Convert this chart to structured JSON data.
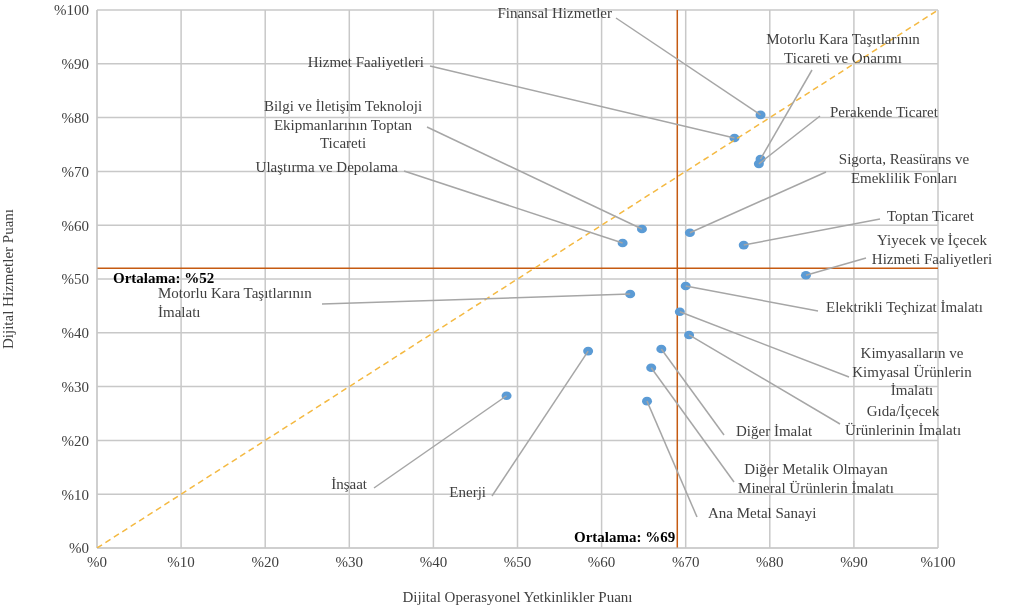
{
  "chart_data": {
    "type": "scatter",
    "xlabel": "Dijital Operasyonel Yetkinlikler Puanı",
    "ylabel": "Dijital Hizmetler Puanı",
    "xlim": [
      0,
      100
    ],
    "ylim": [
      0,
      100
    ],
    "xticks": [
      {
        "value": 0,
        "label": "%0"
      },
      {
        "value": 10,
        "label": "%10"
      },
      {
        "value": 20,
        "label": "%20"
      },
      {
        "value": 30,
        "label": "%30"
      },
      {
        "value": 40,
        "label": "%40"
      },
      {
        "value": 50,
        "label": "%50"
      },
      {
        "value": 60,
        "label": "%60"
      },
      {
        "value": 70,
        "label": "%70"
      },
      {
        "value": 80,
        "label": "%80"
      },
      {
        "value": 90,
        "label": "%90"
      },
      {
        "value": 100,
        "label": "%100"
      }
    ],
    "yticks": [
      {
        "value": 0,
        "label": "%0"
      },
      {
        "value": 10,
        "label": "%10"
      },
      {
        "value": 20,
        "label": "%20"
      },
      {
        "value": 30,
        "label": "%30"
      },
      {
        "value": 40,
        "label": "%40"
      },
      {
        "value": 50,
        "label": "%50"
      },
      {
        "value": 60,
        "label": "%60"
      },
      {
        "value": 70,
        "label": "%70"
      },
      {
        "value": 80,
        "label": "%80"
      },
      {
        "value": 90,
        "label": "%90"
      },
      {
        "value": 100,
        "label": "%100"
      }
    ],
    "grid": true,
    "legend": false,
    "series": [
      {
        "color": "#5b9bd5",
        "marker": "circle",
        "x": [
          78.9,
          75.8,
          78.9,
          78.7,
          64.8,
          62.5,
          70.5,
          76.9,
          84.3,
          63.4,
          70.0,
          69.3,
          70.4,
          67.1,
          65.9,
          65.4,
          58.4,
          48.7
        ],
        "values": [
          80.5,
          76.2,
          72.3,
          71.4,
          59.3,
          56.7,
          58.6,
          56.3,
          50.7,
          47.2,
          48.7,
          43.9,
          39.6,
          37.0,
          33.5,
          27.3,
          36.6,
          28.3
        ]
      },
      {
        "type": "line",
        "color": "#f4b942",
        "marker": "none",
        "line_style": "dashed",
        "x": [
          0,
          100
        ],
        "values": [
          0,
          100
        ]
      }
    ],
    "ref_lines": [
      {
        "axis": "x",
        "value": 69,
        "label": "Ortalama: %69",
        "color": "#c55a11"
      },
      {
        "axis": "y",
        "value": 52,
        "label": "Ortalama: %52",
        "color": "#c55a11"
      }
    ],
    "annotations": [
      {
        "text": "Finansal Hizmetler",
        "x": 78.9,
        "y": 80.5
      },
      {
        "text": "Hizmet Faaliyetleri",
        "x": 75.8,
        "y": 76.2
      },
      {
        "text": "Motorlu Kara Taşıtlarının\nTicareti ve Onarımı",
        "x": 78.9,
        "y": 72.3
      },
      {
        "text": "Perakende Ticaret",
        "x": 78.7,
        "y": 71.4
      },
      {
        "text": "Bilgi ve İletişim Teknoloji\nEkipmanlarının Toptan\nTicareti",
        "x": 64.8,
        "y": 59.3
      },
      {
        "text": "Ulaştırma ve Depolama",
        "x": 62.5,
        "y": 56.7
      },
      {
        "text": "Sigorta, Reasürans ve\nEmeklilik Fonları",
        "x": 70.5,
        "y": 58.6
      },
      {
        "text": "Toptan Ticaret",
        "x": 76.9,
        "y": 56.3
      },
      {
        "text": "Yiyecek ve İçecek\nHizmeti Faaliyetleri",
        "x": 84.3,
        "y": 50.7
      },
      {
        "text": "Motorlu Kara Taşıtlarının\nİmalatı",
        "x": 63.4,
        "y": 47.2
      },
      {
        "text": "Elektrikli Teçhizat İmalatı",
        "x": 70.0,
        "y": 48.7
      },
      {
        "text": "Kimyasalların ve\nKimyasal Ürünlerin\nİmalatı",
        "x": 69.3,
        "y": 43.9
      },
      {
        "text": "Gıda/İçecek\nÜrünlerinin İmalatı",
        "x": 70.4,
        "y": 39.6
      },
      {
        "text": "Diğer İmalat",
        "x": 67.1,
        "y": 37.0
      },
      {
        "text": "Diğer Metalik Olmayan\nMineral Ürünlerin İmalatı",
        "x": 65.9,
        "y": 33.5
      },
      {
        "text": "Ana Metal Sanayi",
        "x": 65.4,
        "y": 27.3
      },
      {
        "text": "Enerji",
        "x": 58.4,
        "y": 36.6
      },
      {
        "text": "İnşaat",
        "x": 48.7,
        "y": 28.3
      }
    ]
  }
}
